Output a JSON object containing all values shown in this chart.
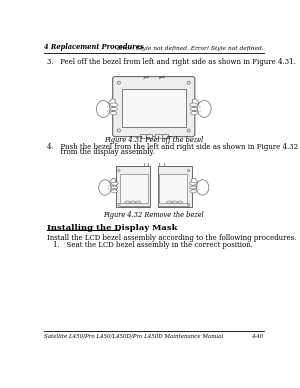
{
  "bg_color": "#ffffff",
  "header_left": "4 Replacement Procedures",
  "header_right": "Error! Style not defined. Error! Style not defined.",
  "footer_text": "Satellite L450/Pro L450/L450D/Pro L450D Maintenance Manual",
  "footer_right": "4-40",
  "step3_text": "3.   Peel off the bezel from left and right side as shown in Figure 4.31.",
  "fig431_caption": "Figure 4.31 Peel off the bezel",
  "step4_line1": "4.   Push the bezel from the left and right side as shown in Figure 4.32 and remove the bezel",
  "step4_line2": "      from the display assembly.",
  "fig432_caption": "Figure 4.32 Remove the bezel",
  "section_title": "Installing the Display Mask",
  "para1": "Install the LCD bezel assembly according to the following procedures.",
  "step1_install": "1.   Seat the LCD bezel assembly in the correct position.",
  "ec": "#666666",
  "fc_bezel": "#eeeeee",
  "fc_screen": "#f8f8f8"
}
